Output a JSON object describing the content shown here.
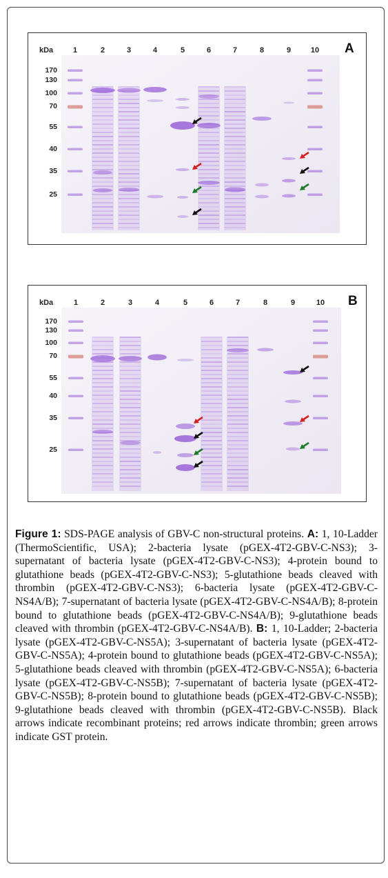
{
  "panels": [
    {
      "letter": "A",
      "kda_label": "kDa",
      "lane_numbers": [
        "1",
        "2",
        "3",
        "4",
        "5",
        "6",
        "7",
        "8",
        "9",
        "10"
      ],
      "mw_markers": [
        "170",
        "130",
        "100",
        "70",
        "55",
        "40",
        "35",
        "25"
      ],
      "arrows": [
        {
          "color": "#111111",
          "meaning": "recombinant protein",
          "lane": "5"
        },
        {
          "color": "#d42020",
          "meaning": "thrombin",
          "lane": "5"
        },
        {
          "color": "#1f7a2a",
          "meaning": "GST protein",
          "lane": "5"
        },
        {
          "color": "#111111",
          "meaning": "recombinant protein",
          "lane": "5"
        },
        {
          "color": "#d42020",
          "meaning": "thrombin",
          "lane": "9"
        },
        {
          "color": "#111111",
          "meaning": "recombinant protein",
          "lane": "9"
        },
        {
          "color": "#1f7a2a",
          "meaning": "GST protein",
          "lane": "9"
        }
      ]
    },
    {
      "letter": "B",
      "kda_label": "kDa",
      "lane_numbers": [
        "1",
        "2",
        "3",
        "4",
        "5",
        "6",
        "7",
        "8",
        "9",
        "10"
      ],
      "mw_markers": [
        "170",
        "130",
        "100",
        "70",
        "55",
        "40",
        "35",
        "25"
      ],
      "arrows": [
        {
          "color": "#d42020",
          "meaning": "thrombin",
          "lane": "5"
        },
        {
          "color": "#111111",
          "meaning": "recombinant protein",
          "lane": "5"
        },
        {
          "color": "#1f7a2a",
          "meaning": "GST protein",
          "lane": "5"
        },
        {
          "color": "#111111",
          "meaning": "recombinant protein",
          "lane": "5"
        },
        {
          "color": "#111111",
          "meaning": "recombinant protein",
          "lane": "9"
        },
        {
          "color": "#d42020",
          "meaning": "thrombin",
          "lane": "9"
        },
        {
          "color": "#1f7a2a",
          "meaning": "GST protein",
          "lane": "9"
        }
      ]
    }
  ],
  "colors": {
    "stain": "#9a62d8",
    "background_gel": "#f1eff6",
    "ladder_red": "#d88a80"
  },
  "caption": {
    "label": "Figure 1:",
    "title": " SDS-PAGE analysis of GBV-C non-structural proteins. ",
    "a_label": "A:",
    "a_text": " 1, 10-Ladder (ThermoScientific, USA); 2-bacteria lysate (pGEX-4T2-GBV-C-NS3); 3-supernatant of bacteria lysate (pGEX-4T2-GBV-C-NS3); 4-protein bound to glutathione beads (pGEX-4T2-GBV-C-NS3); 5-glutathione beads cleaved with thrombin (pGEX-4T2-GBV-C-NS3); 6-bacteria lysate (pGEX-4T2-GBV-C-NS4A/B); 7-supernatant of bacteria lysate (pGEX-4T2-GBV-C-NS4A/B); 8-protein bound to glutathione beads (pGEX-4T2-GBV-C-NS4A/B); 9-glutathione beads cleaved with thrombin (pGEX-4T2-GBV-C-NS4A/B). ",
    "b_label": "B:",
    "b_text": " 1, 10-Ladder; 2-bacteria lysate (pGEX-4T2-GBV-C-NS5A); 3-supernatant of bacteria lysate (pGEX-4T2-GBV-C-NS5A); 4-protein bound to glutathione beads (pGEX-4T2-GBV-C-NS5A); 5-glutathione beads cleaved with thrombin (pGEX-4T2-GBV-C-NS5A); 6-bacteria lysate (pGEX-4T2-GBV-C-NS5B); 7-supernatant of bacteria lysate (pGEX-4T2-GBV-C-NS5B); 8-protein bound to glutathione beads (pGEX-4T2-GBV-C-NS5B); 9-glutathione beads cleaved with thrombin (pGEX-4T2-GBV-C-NS5B). Black arrows indicate recombinant proteins; red arrows indicate thrombin; green arrows indicate GST protein."
  }
}
